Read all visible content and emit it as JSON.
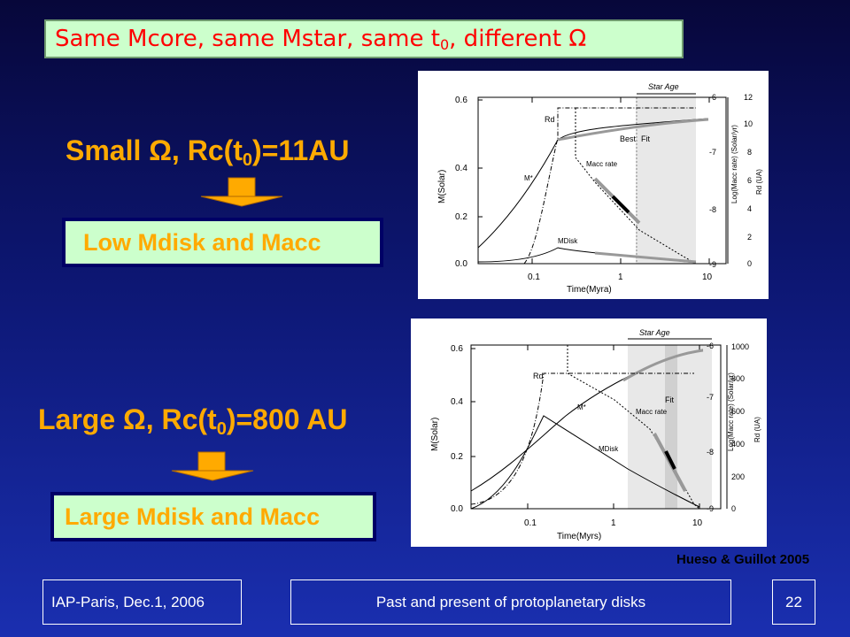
{
  "title": {
    "part1": "Same Mcore, same Mstar, same t",
    "sub": "0",
    "part2": ", different Ω"
  },
  "case_small": {
    "heading_part1": "Small Ω, Rc(t",
    "heading_sub": "0",
    "heading_part2": ")=11AU",
    "result": "Low Mdisk  and Macc"
  },
  "case_large": {
    "heading_part1": "Large Ω, Rc(t",
    "heading_sub": "0",
    "heading_part2": ")=800 AU",
    "result": "Large Mdisk and Macc"
  },
  "plot_top": {
    "xlabel": "Time(Myra)",
    "ylabel_left": "M(Solar)",
    "ylabel_right_rate": "Log(Macc rate) (Solar/yr)",
    "ylabel_right_rd": "Rd (UA)",
    "x_ticks": [
      "0.1",
      "1",
      "10"
    ],
    "y_left_ticks": [
      "0.0",
      "0.2",
      "0.4",
      "0.6"
    ],
    "y_rate_ticks": [
      "-9",
      "-8",
      "-7",
      "-6"
    ],
    "y_rd_ticks": [
      "0",
      "2",
      "4",
      "6",
      "8",
      "10",
      "12"
    ],
    "label_rd": "Rd",
    "label_mstar": "M*",
    "label_macc": "Macc rate",
    "label_mdisk": "MDisk",
    "label_star_age": "Star Age",
    "label_best_fit_1": "Best",
    "label_best_fit_2": "Fit"
  },
  "plot_bottom": {
    "xlabel": "Time(Myrs)",
    "ylabel_left": "M(Solar)",
    "ylabel_right_rate": "Log(Macc rate) (Solar/yr)",
    "ylabel_right_rd": "Rd (UA)",
    "x_ticks": [
      "0.1",
      "1",
      "10"
    ],
    "y_left_ticks": [
      "0.0",
      "0.2",
      "0.4",
      "0.6"
    ],
    "y_rate_ticks": [
      "-9",
      "-8",
      "-7",
      "-6"
    ],
    "y_rd_ticks": [
      "0",
      "200",
      "400",
      "600",
      "800",
      "1000"
    ],
    "label_rd": "Rd",
    "label_mstar": "M*",
    "label_macc": "Macc rate",
    "label_mdisk": "MDisk",
    "label_star_age": "Star Age",
    "label_fit": "Fit"
  },
  "citation": "Hueso & Guillot 2005",
  "footer": {
    "venue": "IAP-Paris, Dec.1, 2006",
    "talk_title": "Past and present of protoplanetary disks",
    "page_number": "22"
  },
  "colors": {
    "heading": "#ffaa00",
    "title_text": "#ff0000",
    "box_fill": "#ccffcc",
    "arrow_fill": "#ffaa00"
  }
}
